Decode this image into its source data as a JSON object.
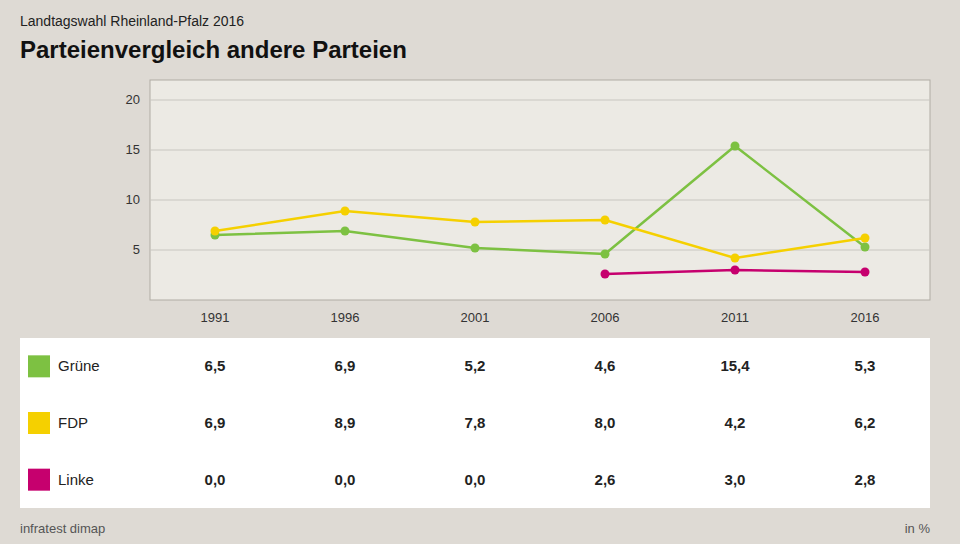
{
  "chart_data": {
    "type": "line",
    "subtitle": "Landtagswahl Rheinland-Pfalz 2016",
    "title": "Parteienvergleich andere Parteien",
    "categories": [
      "1991",
      "1996",
      "2001",
      "2006",
      "2011",
      "2016"
    ],
    "series": [
      {
        "name": "Grüne",
        "color": "#7dc142",
        "marker": "circle",
        "values": [
          6.5,
          6.9,
          5.2,
          4.6,
          15.4,
          5.3
        ],
        "value_labels": [
          "6,5",
          "6,9",
          "5,2",
          "4,6",
          "15,4",
          "5,3"
        ]
      },
      {
        "name": "FDP",
        "color": "#f5d000",
        "marker": "circle",
        "values": [
          6.9,
          8.9,
          7.8,
          8.0,
          4.2,
          6.2
        ],
        "value_labels": [
          "6,9",
          "8,9",
          "7,8",
          "8,0",
          "4,2",
          "6,2"
        ]
      },
      {
        "name": "Linke",
        "color": "#c6006e",
        "marker": "circle",
        "values": [
          null,
          null,
          null,
          2.6,
          3.0,
          2.8
        ],
        "value_labels": [
          "0,0",
          "0,0",
          "0,0",
          "2,6",
          "3,0",
          "2,8"
        ]
      }
    ],
    "ylim": [
      0,
      22
    ],
    "yticks": [
      5,
      10,
      15,
      20
    ],
    "grid": true,
    "source": "infratest dimap",
    "unit": "in %"
  }
}
